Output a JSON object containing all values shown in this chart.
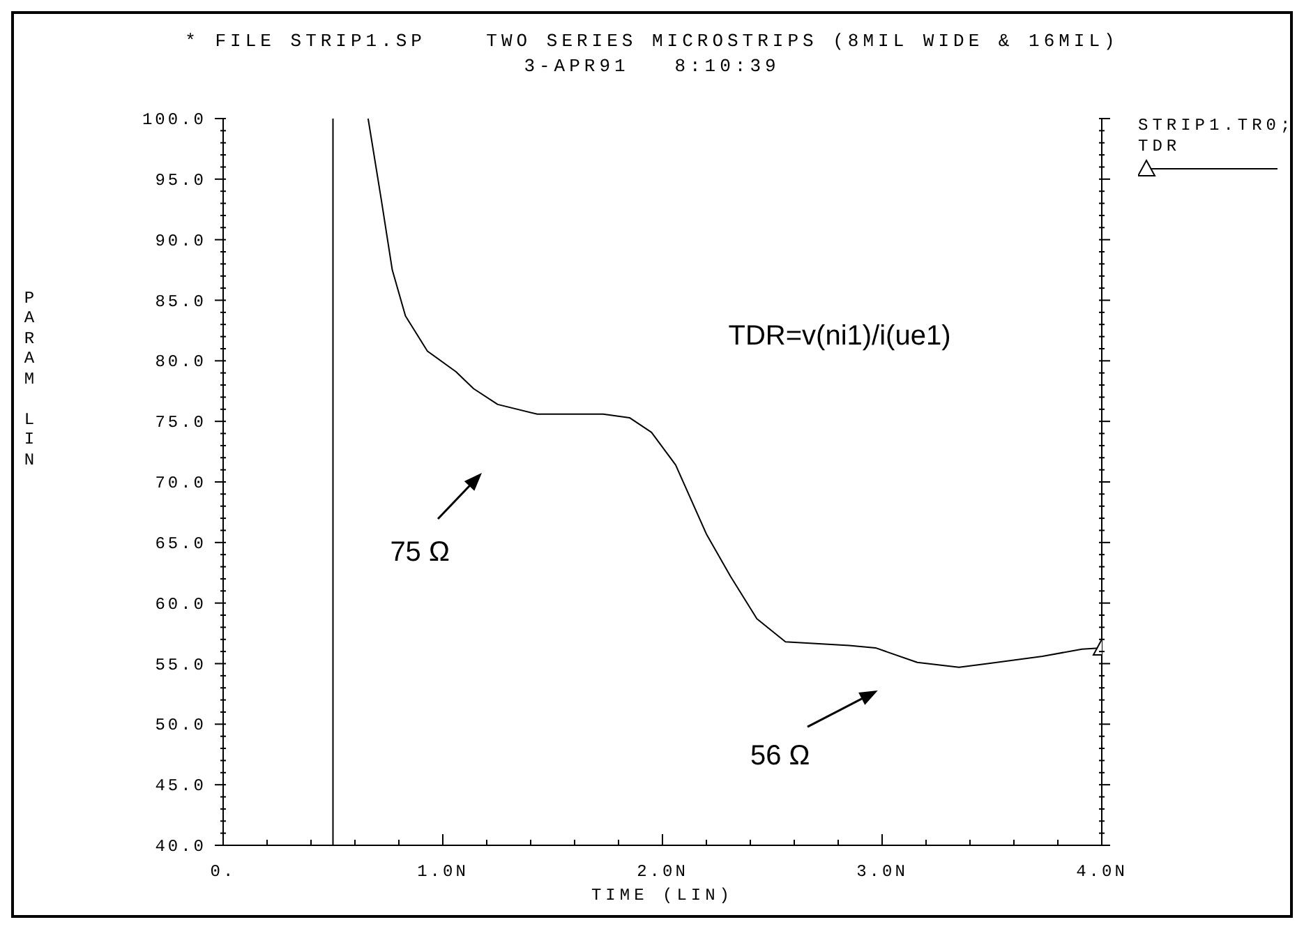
{
  "chart_data": {
    "type": "line",
    "title": "* FILE STRIP1.SP    TWO SERIES MICROSTRIPS (8MIL WIDE & 16MIL)",
    "subtitle": "3-APR91   8:10:39",
    "xlabel": "TIME (LIN)",
    "ylabel": "PARAM LIN",
    "legend_title": "STRIP1.TR0;",
    "legend": "top right",
    "annotations": [
      "TDR=v(ni1)/i(ue1)",
      "75 Ω",
      "56 Ω"
    ],
    "xlim": [
      0,
      4
    ],
    "xticks": [
      {
        "value": 0,
        "label": "0."
      },
      {
        "value": 0.2,
        "label": null
      },
      {
        "value": 0.4,
        "label": null
      },
      {
        "value": 0.6,
        "label": null
      },
      {
        "value": 0.8,
        "label": null
      },
      {
        "value": 1,
        "label": "1.0N"
      },
      {
        "value": 1.2,
        "label": null
      },
      {
        "value": 1.4,
        "label": null
      },
      {
        "value": 1.6,
        "label": null
      },
      {
        "value": 1.8,
        "label": null
      },
      {
        "value": 2,
        "label": "2.0N"
      },
      {
        "value": 2.2,
        "label": null
      },
      {
        "value": 2.4,
        "label": null
      },
      {
        "value": 2.6,
        "label": null
      },
      {
        "value": 2.8,
        "label": null
      },
      {
        "value": 3,
        "label": "3.0N"
      },
      {
        "value": 3.2,
        "label": null
      },
      {
        "value": 3.4,
        "label": null
      },
      {
        "value": 3.6,
        "label": null
      },
      {
        "value": 3.8,
        "label": null
      },
      {
        "value": 4,
        "label": "4.0N"
      }
    ],
    "ylim": [
      40,
      100
    ],
    "yticks": [
      {
        "value": 40,
        "label": "40.0"
      },
      {
        "value": 41,
        "label": null
      },
      {
        "value": 42,
        "label": null
      },
      {
        "value": 43,
        "label": null
      },
      {
        "value": 44,
        "label": null
      },
      {
        "value": 45,
        "label": "45.0"
      },
      {
        "value": 46,
        "label": null
      },
      {
        "value": 47,
        "label": null
      },
      {
        "value": 48,
        "label": null
      },
      {
        "value": 49,
        "label": null
      },
      {
        "value": 50,
        "label": "50.0"
      },
      {
        "value": 51,
        "label": null
      },
      {
        "value": 52,
        "label": null
      },
      {
        "value": 53,
        "label": null
      },
      {
        "value": 54,
        "label": null
      },
      {
        "value": 55,
        "label": "55.0"
      },
      {
        "value": 56,
        "label": null
      },
      {
        "value": 57,
        "label": null
      },
      {
        "value": 58,
        "label": null
      },
      {
        "value": 59,
        "label": null
      },
      {
        "value": 60,
        "label": "60.0"
      },
      {
        "value": 61,
        "label": null
      },
      {
        "value": 62,
        "label": null
      },
      {
        "value": 63,
        "label": null
      },
      {
        "value": 64,
        "label": null
      },
      {
        "value": 65,
        "label": "65.0"
      },
      {
        "value": 66,
        "label": null
      },
      {
        "value": 67,
        "label": null
      },
      {
        "value": 68,
        "label": null
      },
      {
        "value": 69,
        "label": null
      },
      {
        "value": 70,
        "label": "70.0"
      },
      {
        "value": 71,
        "label": null
      },
      {
        "value": 72,
        "label": null
      },
      {
        "value": 73,
        "label": null
      },
      {
        "value": 74,
        "label": null
      },
      {
        "value": 75,
        "label": "75.0"
      },
      {
        "value": 76,
        "label": null
      },
      {
        "value": 77,
        "label": null
      },
      {
        "value": 78,
        "label": null
      },
      {
        "value": 79,
        "label": null
      },
      {
        "value": 80,
        "label": "80.0"
      },
      {
        "value": 81,
        "label": null
      },
      {
        "value": 82,
        "label": null
      },
      {
        "value": 83,
        "label": null
      },
      {
        "value": 84,
        "label": null
      },
      {
        "value": 85,
        "label": "85.0"
      },
      {
        "value": 86,
        "label": null
      },
      {
        "value": 87,
        "label": null
      },
      {
        "value": 88,
        "label": null
      },
      {
        "value": 89,
        "label": null
      },
      {
        "value": 90,
        "label": "90.0"
      },
      {
        "value": 91,
        "label": null
      },
      {
        "value": 92,
        "label": null
      },
      {
        "value": 93,
        "label": null
      },
      {
        "value": 94,
        "label": null
      },
      {
        "value": 95,
        "label": "95.0"
      },
      {
        "value": 96,
        "label": null
      },
      {
        "value": 97,
        "label": null
      },
      {
        "value": 98,
        "label": null
      },
      {
        "value": 99,
        "label": null
      },
      {
        "value": 100,
        "label": "100.0"
      }
    ],
    "series": [
      {
        "name": "TDR",
        "color": "#000000",
        "x": [
          0.5,
          0.5,
          0.6,
          0.66,
          0.72,
          0.77,
          0.83,
          0.93,
          1.06,
          1.14,
          1.25,
          1.43,
          1.73,
          1.85,
          1.95,
          2.06,
          2.2,
          2.31,
          2.43,
          2.56,
          2.85,
          2.97,
          3.16,
          3.35,
          3.48,
          3.73,
          3.91,
          4.0
        ],
        "values": [
          40,
          100,
          null,
          100,
          93.3,
          87.5,
          83.7,
          80.8,
          79.1,
          77.7,
          76.4,
          75.6,
          75.6,
          75.3,
          74.1,
          71.4,
          65.7,
          62.2,
          58.7,
          56.8,
          56.5,
          56.3,
          55.1,
          54.7,
          55.0,
          55.6,
          56.2,
          56.3
        ]
      }
    ]
  }
}
